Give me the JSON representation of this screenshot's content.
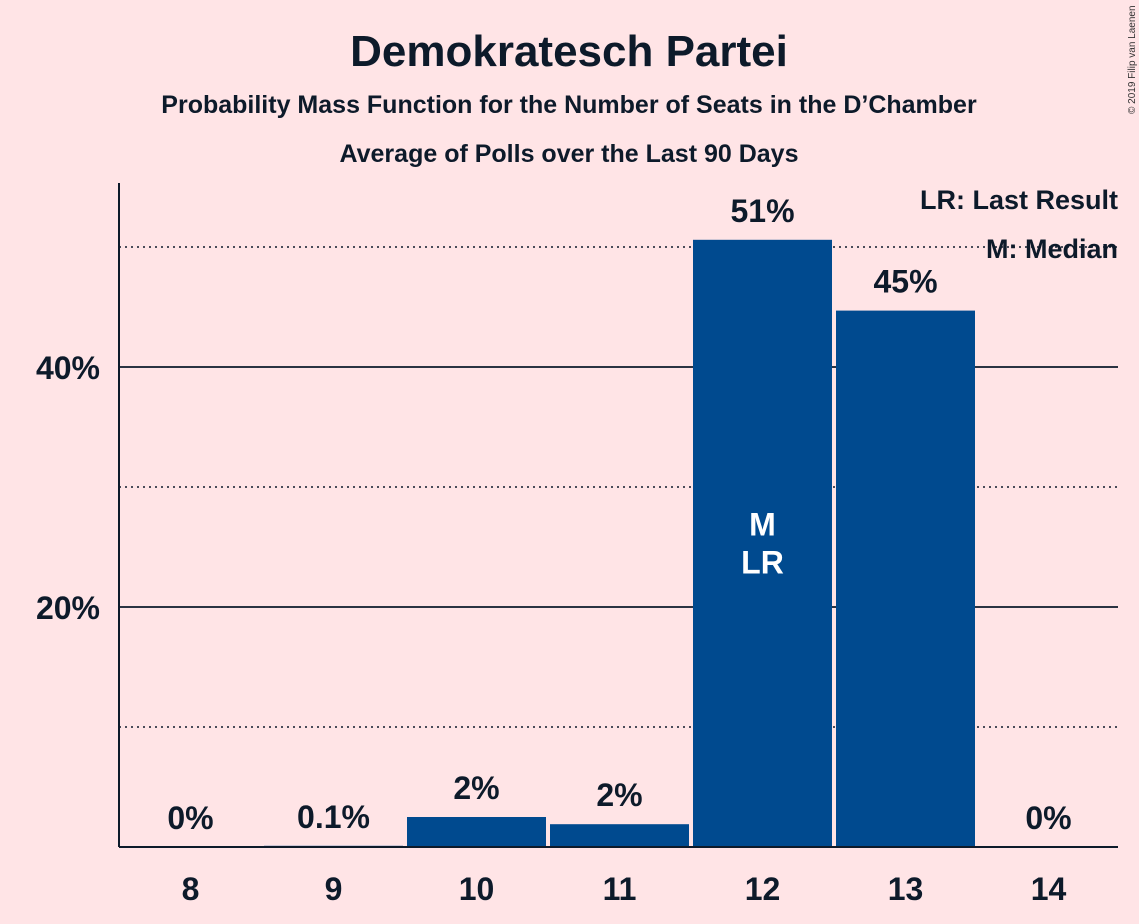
{
  "chart_data": {
    "type": "bar",
    "title": "Demokratesch Partei",
    "subtitle": "Probability Mass Function for the Number of Seats in the D’Chamber",
    "subtitle2": "Average of Polls over the Last 90 Days",
    "categories": [
      "8",
      "9",
      "10",
      "11",
      "12",
      "13",
      "14"
    ],
    "values": [
      0,
      0.1,
      2.5,
      1.9,
      50.6,
      44.7,
      0
    ],
    "value_labels": [
      "0%",
      "0.1%",
      "2%",
      "2%",
      "51%",
      "45%",
      "0%"
    ],
    "ylim": [
      0,
      55
    ],
    "y_ticks": [
      {
        "value": 20,
        "label": "20%"
      },
      {
        "value": 40,
        "label": "40%"
      }
    ],
    "minor_gridlines": [
      10,
      30,
      50
    ],
    "bar_color": "#004A8F",
    "grid": true,
    "markers": [
      {
        "category": "12",
        "text": "M"
      },
      {
        "category": "12",
        "text": "LR"
      }
    ],
    "legend": {
      "placement": "top-right",
      "items": [
        "LR: Last Result",
        "M: Median"
      ]
    },
    "copyright": "© 2019 Filip van Laenen"
  }
}
